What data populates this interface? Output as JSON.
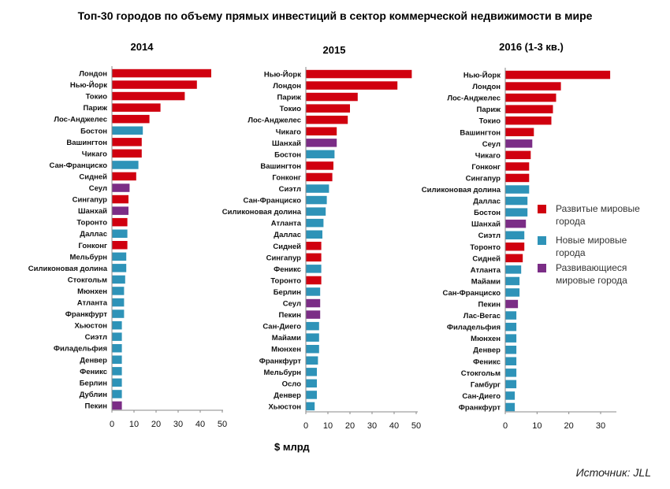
{
  "title": "Топ-30 городов по объему прямых инвестиций в сектор коммерческой недвижимости в мире",
  "unit_label": "$ млрд",
  "source": "Источник: JLL",
  "colors": {
    "developed": "#d0000f",
    "new": "#2e93b8",
    "emerging": "#7b2d86"
  },
  "legend": [
    {
      "key": "developed",
      "label": "Развитые мировые города"
    },
    {
      "key": "new",
      "label": "Новые мировые города"
    },
    {
      "key": "emerging",
      "label": "Развивающиеся мировые города"
    }
  ],
  "chart_data": [
    {
      "type": "bar",
      "title": "2014",
      "xlim": [
        0,
        50
      ],
      "xticks": [
        0,
        10,
        20,
        30,
        40,
        50
      ],
      "categories": [
        "Лондон",
        "Нью-Йорк",
        "Токио",
        "Париж",
        "Лос-Анджелес",
        "Бостон",
        "Вашингтон",
        "Чикаго",
        "Сан-Франциско",
        "Сидней",
        "Сеул",
        "Сингапур",
        "Шанхай",
        "Торонто",
        "Даллас",
        "Гонконг",
        "Мельбурн",
        "Силиконовая долина",
        "Стокгольм",
        "Мюнхен",
        "Атланта",
        "Франкфурт",
        "Хьюстон",
        "Сиэтл",
        "Филадельфия",
        "Денвер",
        "Феникс",
        "Берлин",
        "Дублин",
        "Пекин"
      ],
      "values": [
        45,
        38.5,
        33,
        22,
        17,
        14,
        13.5,
        13.5,
        12,
        11,
        8,
        7.5,
        7.5,
        7,
        7,
        7,
        6.5,
        6.5,
        6,
        5.5,
        5.5,
        5.5,
        4.5,
        4.5,
        4.5,
        4.5,
        4.5,
        4.5,
        4.5,
        4.5
      ],
      "groups": [
        "developed",
        "developed",
        "developed",
        "developed",
        "developed",
        "new",
        "developed",
        "developed",
        "new",
        "developed",
        "emerging",
        "developed",
        "emerging",
        "developed",
        "new",
        "developed",
        "new",
        "new",
        "new",
        "new",
        "new",
        "new",
        "new",
        "new",
        "new",
        "new",
        "new",
        "new",
        "new",
        "emerging"
      ]
    },
    {
      "type": "bar",
      "title": "2015",
      "xlim": [
        0,
        50
      ],
      "xticks": [
        0,
        10,
        20,
        30,
        40,
        50
      ],
      "categories": [
        "Нью-Йорк",
        "Лондон",
        "Париж",
        "Токио",
        "Лос-Анджелес",
        "Чикаго",
        "Шанхай",
        "Бостон",
        "Вашингтон",
        "Гонконг",
        "Сиэтл",
        "Сан-Франциско",
        "Силиконовая долина",
        "Атланта",
        "Даллас",
        "Сидней",
        "Сингапур",
        "Феникс",
        "Торонто",
        "Берлин",
        "Сеул",
        "Пекин",
        "Сан-Диего",
        "Майами",
        "Мюнхен",
        "Франкфурт",
        "Мельбурн",
        "Осло",
        "Денвер",
        "Хьюстон"
      ],
      "values": [
        48,
        41.5,
        23.5,
        20,
        19,
        14,
        14,
        13,
        12.5,
        12,
        10.5,
        9.5,
        9,
        8,
        7.5,
        7,
        7,
        7,
        7,
        6.5,
        6.5,
        6.5,
        6,
        6,
        6,
        5.5,
        5,
        5,
        5,
        4
      ],
      "groups": [
        "developed",
        "developed",
        "developed",
        "developed",
        "developed",
        "developed",
        "emerging",
        "new",
        "developed",
        "developed",
        "new",
        "new",
        "new",
        "new",
        "new",
        "developed",
        "developed",
        "new",
        "developed",
        "new",
        "emerging",
        "emerging",
        "new",
        "new",
        "new",
        "new",
        "new",
        "new",
        "new",
        "new"
      ]
    },
    {
      "type": "bar",
      "title": "2016 (1-3 кв.)",
      "xlim": [
        0,
        35
      ],
      "xticks": [
        0,
        10,
        20,
        30
      ],
      "categories": [
        "Нью-Йорк",
        "Лондон",
        "Лос-Анджелес",
        "Париж",
        "Токио",
        "Вашингтон",
        "Сеул",
        "Чикаго",
        "Гонконг",
        "Сингапур",
        "Силиконовая долина",
        "Даллас",
        "Бостон",
        "Шанхай",
        "Сиэтл",
        "Торонто",
        "Сидней",
        "Атланта",
        "Майами",
        "Сан-Франциско",
        "Пекин",
        "Лас-Вегас",
        "Филадельфия",
        "Мюнхен",
        "Денвер",
        "Феникс",
        "Стокгольм",
        "Гамбург",
        "Сан-Диего",
        "Франкфурт"
      ],
      "values": [
        33,
        17.5,
        16,
        15,
        14.5,
        9,
        8.5,
        8,
        7.5,
        7.5,
        7.5,
        7,
        7,
        6.5,
        6,
        6,
        5.5,
        5,
        4.5,
        4.5,
        4,
        3.5,
        3.5,
        3.5,
        3.5,
        3.5,
        3.5,
        3.5,
        3,
        3
      ],
      "groups": [
        "developed",
        "developed",
        "developed",
        "developed",
        "developed",
        "developed",
        "emerging",
        "developed",
        "developed",
        "developed",
        "new",
        "new",
        "new",
        "emerging",
        "new",
        "developed",
        "developed",
        "new",
        "new",
        "new",
        "emerging",
        "new",
        "new",
        "new",
        "new",
        "new",
        "new",
        "new",
        "new",
        "new"
      ]
    }
  ]
}
